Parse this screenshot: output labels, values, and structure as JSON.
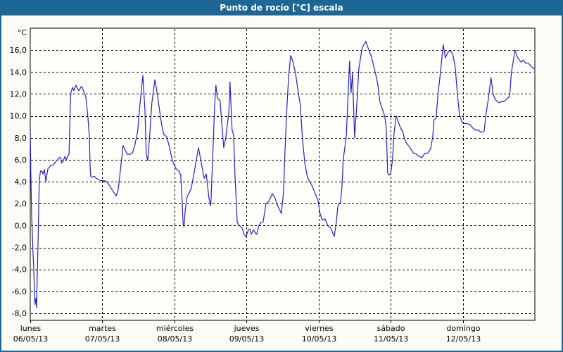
{
  "window": {
    "title": "Punto de rocío [°C] escala"
  },
  "colors": {
    "titlebar": "#1E6696",
    "window_border": "#1E6696",
    "line": "#2121C8",
    "grid": "#000000",
    "axis_text": "#000000",
    "title_text": "#FFFFFF",
    "plot_bg": "#FEFEFB",
    "page_bg": "#FCFCF6"
  },
  "chart_data": {
    "type": "line",
    "title": "Punto de rocío [°C] escala",
    "unit_label": "°C",
    "xlabel": "",
    "ylabel": "Punto de rocío [°C]",
    "grid": true,
    "legend_position": "none",
    "ylim": [
      -8.64,
      18.0
    ],
    "x_hours_total": 168,
    "x_hours_per_day": 24,
    "y_ticks": [
      {
        "v": 16,
        "label": "16,0"
      },
      {
        "v": 14,
        "label": "14,0"
      },
      {
        "v": 12,
        "label": "12,0"
      },
      {
        "v": 10,
        "label": "10,0"
      },
      {
        "v": 8,
        "label": "8,0"
      },
      {
        "v": 6,
        "label": "6,0"
      },
      {
        "v": 4,
        "label": "4,0"
      },
      {
        "v": 2,
        "label": "2,0"
      },
      {
        "v": 0,
        "label": "0,0"
      },
      {
        "v": -2,
        "label": "-2,0"
      },
      {
        "v": -4,
        "label": "-4,0"
      },
      {
        "v": -6,
        "label": "-6,0"
      },
      {
        "v": -8,
        "label": "-8,0"
      }
    ],
    "x_days": [
      {
        "name": "lunes",
        "date": "06/05/13"
      },
      {
        "name": "martes",
        "date": "07/05/13"
      },
      {
        "name": "miércoles",
        "date": "08/05/13"
      },
      {
        "name": "jueves",
        "date": "09/05/13"
      },
      {
        "name": "viernes",
        "date": "10/05/13"
      },
      {
        "name": "sábado",
        "date": "11/05/13"
      },
      {
        "name": "domingo",
        "date": "12/05/13"
      }
    ],
    "series": [
      {
        "name": "Punto de rocío",
        "color": "#2121C8",
        "points": [
          [
            0,
            8.7
          ],
          [
            0.2,
            4.5
          ],
          [
            0.5,
            0.5
          ],
          [
            0.7,
            -0.7
          ],
          [
            0.9,
            -2.3
          ],
          [
            1.2,
            -4.2
          ],
          [
            1.4,
            -6.2
          ],
          [
            1.6,
            -7.2
          ],
          [
            1.9,
            -6.6
          ],
          [
            2.1,
            -7.5
          ],
          [
            2.3,
            -5.0
          ],
          [
            2.6,
            -1.5
          ],
          [
            2.8,
            1.6
          ],
          [
            3.0,
            4.0
          ],
          [
            3.3,
            4.8
          ],
          [
            3.5,
            5.0
          ],
          [
            4.0,
            4.9
          ],
          [
            4.2,
            4.7
          ],
          [
            4.7,
            5.1
          ],
          [
            5.2,
            4.0
          ],
          [
            5.4,
            4.4
          ],
          [
            5.9,
            5.2
          ],
          [
            6.3,
            5.3
          ],
          [
            6.8,
            5.5
          ],
          [
            7.5,
            5.5
          ],
          [
            8.2,
            5.7
          ],
          [
            8.7,
            5.9
          ],
          [
            9.1,
            6.0
          ],
          [
            9.6,
            6.2
          ],
          [
            10.1,
            6.2
          ],
          [
            10.5,
            5.7
          ],
          [
            11.0,
            5.9
          ],
          [
            11.5,
            6.3
          ],
          [
            12.0,
            6.0
          ],
          [
            12.4,
            6.3
          ],
          [
            12.9,
            6.5
          ],
          [
            13.4,
            11.7
          ],
          [
            13.6,
            12.2
          ],
          [
            14.1,
            12.6
          ],
          [
            14.5,
            12.3
          ],
          [
            15.2,
            12.8
          ],
          [
            15.7,
            12.5
          ],
          [
            16.2,
            12.3
          ],
          [
            16.6,
            12.5
          ],
          [
            17.1,
            12.7
          ],
          [
            17.6,
            12.4
          ],
          [
            18.0,
            12.1
          ],
          [
            18.5,
            11.7
          ],
          [
            19.2,
            9.9
          ],
          [
            19.7,
            8.0
          ],
          [
            19.9,
            5.6
          ],
          [
            20.1,
            4.5
          ],
          [
            20.6,
            4.4
          ],
          [
            21.3,
            4.5
          ],
          [
            22.0,
            4.3
          ],
          [
            22.7,
            4.2
          ],
          [
            23.4,
            4.1
          ],
          [
            24.4,
            4.1
          ],
          [
            25.5,
            4.0
          ],
          [
            26.5,
            3.6
          ],
          [
            27.4,
            3.2
          ],
          [
            28.6,
            2.7
          ],
          [
            29.3,
            3.3
          ],
          [
            29.7,
            4.3
          ],
          [
            30.4,
            6.0
          ],
          [
            30.9,
            7.3
          ],
          [
            31.6,
            6.9
          ],
          [
            32.3,
            6.5
          ],
          [
            33.3,
            6.5
          ],
          [
            34.0,
            6.6
          ],
          [
            34.9,
            7.4
          ],
          [
            35.8,
            8.7
          ],
          [
            36.5,
            11.0
          ],
          [
            37.5,
            13.7
          ],
          [
            38.2,
            10.5
          ],
          [
            38.6,
            6.6
          ],
          [
            39.1,
            5.9
          ],
          [
            39.8,
            8.4
          ],
          [
            40.5,
            11.2
          ],
          [
            41.5,
            13.3
          ],
          [
            42.4,
            11.8
          ],
          [
            43.3,
            10.0
          ],
          [
            44.0,
            8.8
          ],
          [
            44.5,
            8.3
          ],
          [
            45.4,
            8.1
          ],
          [
            46.4,
            7.1
          ],
          [
            47.3,
            5.9
          ],
          [
            48.5,
            5.2
          ],
          [
            49.7,
            4.9
          ],
          [
            50.1,
            4.6
          ],
          [
            50.6,
            2.0
          ],
          [
            50.9,
            0.1
          ],
          [
            51.2,
            -0.1
          ],
          [
            51.6,
            1.4
          ],
          [
            52.2,
            2.6
          ],
          [
            52.9,
            3.0
          ],
          [
            53.6,
            3.4
          ],
          [
            54.8,
            5.2
          ],
          [
            56.0,
            7.1
          ],
          [
            56.9,
            5.8
          ],
          [
            57.9,
            4.3
          ],
          [
            58.6,
            4.7
          ],
          [
            59.5,
            2.5
          ],
          [
            60.1,
            1.8
          ],
          [
            60.7,
            6.0
          ],
          [
            61.4,
            11.0
          ],
          [
            61.8,
            12.8
          ],
          [
            62.3,
            11.6
          ],
          [
            63.2,
            11.4
          ],
          [
            63.7,
            9.5
          ],
          [
            64.4,
            7.1
          ],
          [
            65.1,
            8.0
          ],
          [
            66.1,
            10.3
          ],
          [
            66.5,
            13.1
          ],
          [
            67.2,
            8.7
          ],
          [
            67.7,
            8.3
          ],
          [
            68.2,
            4.3
          ],
          [
            68.9,
            0.3
          ],
          [
            69.6,
            0.0
          ],
          [
            70.5,
            -0.2
          ],
          [
            71.2,
            -0.8
          ],
          [
            71.9,
            -1.0
          ],
          [
            72.6,
            -0.4
          ],
          [
            73.1,
            -0.3
          ],
          [
            73.6,
            -0.8
          ],
          [
            74.3,
            -0.4
          ],
          [
            75.0,
            -0.7
          ],
          [
            75.4,
            -0.8
          ],
          [
            76.1,
            0.0
          ],
          [
            76.8,
            0.3
          ],
          [
            77.5,
            0.3
          ],
          [
            78.5,
            2.0
          ],
          [
            79.4,
            2.2
          ],
          [
            80.6,
            2.9
          ],
          [
            81.5,
            2.5
          ],
          [
            82.2,
            1.9
          ],
          [
            82.9,
            1.5
          ],
          [
            83.6,
            1.1
          ],
          [
            84.3,
            3.0
          ],
          [
            84.8,
            6.7
          ],
          [
            85.5,
            11.0
          ],
          [
            86.0,
            13.5
          ],
          [
            86.7,
            15.5
          ],
          [
            87.4,
            15.0
          ],
          [
            88.3,
            13.9
          ],
          [
            89.2,
            12.2
          ],
          [
            89.9,
            11.0
          ],
          [
            90.6,
            8.0
          ],
          [
            91.4,
            5.7
          ],
          [
            92.3,
            4.4
          ],
          [
            93.0,
            4.0
          ],
          [
            93.7,
            3.7
          ],
          [
            94.9,
            2.9
          ],
          [
            95.8,
            2.3
          ],
          [
            96.5,
            1.1
          ],
          [
            97.2,
            0.5
          ],
          [
            98.1,
            0.6
          ],
          [
            99.1,
            0.0
          ],
          [
            100.0,
            -0.2
          ],
          [
            101.2,
            -1.0
          ],
          [
            101.9,
            0.3
          ],
          [
            102.4,
            1.7
          ],
          [
            102.8,
            2.0
          ],
          [
            103.3,
            2.1
          ],
          [
            103.8,
            3.6
          ],
          [
            104.2,
            6.0
          ],
          [
            105.2,
            8.1
          ],
          [
            105.6,
            10.5
          ],
          [
            106.3,
            15.0
          ],
          [
            106.8,
            12.1
          ],
          [
            107.3,
            13.9
          ],
          [
            108.0,
            8.0
          ],
          [
            108.7,
            10.9
          ],
          [
            109.4,
            14.3
          ],
          [
            110.5,
            16.2
          ],
          [
            111.7,
            16.8
          ],
          [
            112.6,
            16.1
          ],
          [
            113.6,
            15.4
          ],
          [
            114.3,
            14.6
          ],
          [
            115.0,
            13.8
          ],
          [
            115.7,
            12.9
          ],
          [
            116.4,
            11.3
          ],
          [
            117.1,
            10.7
          ],
          [
            118.0,
            10.0
          ],
          [
            118.5,
            9.0
          ],
          [
            119.0,
            4.8
          ],
          [
            119.4,
            4.6
          ],
          [
            120.0,
            4.7
          ],
          [
            120.6,
            6.0
          ],
          [
            121.1,
            8.3
          ],
          [
            121.8,
            10.0
          ],
          [
            122.5,
            9.5
          ],
          [
            123.0,
            9.1
          ],
          [
            123.7,
            8.7
          ],
          [
            124.1,
            8.5
          ],
          [
            124.6,
            7.9
          ],
          [
            125.3,
            7.5
          ],
          [
            126.2,
            7.2
          ],
          [
            126.9,
            6.9
          ],
          [
            127.6,
            6.6
          ],
          [
            128.6,
            6.5
          ],
          [
            129.5,
            6.3
          ],
          [
            130.4,
            6.2
          ],
          [
            131.4,
            6.6
          ],
          [
            132.3,
            6.6
          ],
          [
            133.3,
            7.0
          ],
          [
            134.0,
            8.1
          ],
          [
            134.4,
            9.6
          ],
          [
            135.1,
            9.8
          ],
          [
            135.8,
            12.1
          ],
          [
            136.5,
            13.8
          ],
          [
            137.5,
            16.5
          ],
          [
            138.2,
            15.3
          ],
          [
            138.9,
            15.7
          ],
          [
            139.3,
            15.9
          ],
          [
            140.0,
            15.9
          ],
          [
            140.7,
            15.6
          ],
          [
            141.5,
            14.4
          ],
          [
            142.2,
            12.0
          ],
          [
            142.9,
            10.1
          ],
          [
            143.8,
            9.4
          ],
          [
            144.5,
            9.3
          ],
          [
            145.4,
            9.3
          ],
          [
            146.4,
            9.2
          ],
          [
            147.3,
            8.9
          ],
          [
            148.2,
            8.7
          ],
          [
            149.2,
            8.7
          ],
          [
            150.1,
            8.5
          ],
          [
            151.1,
            8.6
          ],
          [
            151.8,
            10.3
          ],
          [
            152.5,
            11.5
          ],
          [
            153.4,
            13.5
          ],
          [
            154.1,
            12.0
          ],
          [
            154.8,
            11.5
          ],
          [
            155.5,
            11.3
          ],
          [
            156.2,
            11.2
          ],
          [
            156.9,
            11.3
          ],
          [
            157.6,
            11.3
          ],
          [
            158.5,
            11.5
          ],
          [
            159.3,
            11.7
          ],
          [
            159.7,
            12.1
          ],
          [
            160.2,
            14.0
          ],
          [
            160.7,
            14.8
          ],
          [
            161.4,
            16.0
          ],
          [
            162.1,
            15.4
          ],
          [
            162.8,
            15.1
          ],
          [
            163.5,
            14.9
          ],
          [
            164.2,
            15.1
          ],
          [
            164.9,
            14.8
          ],
          [
            165.8,
            14.8
          ],
          [
            166.5,
            14.6
          ],
          [
            167.2,
            14.4
          ],
          [
            167.7,
            14.3
          ]
        ]
      }
    ]
  }
}
